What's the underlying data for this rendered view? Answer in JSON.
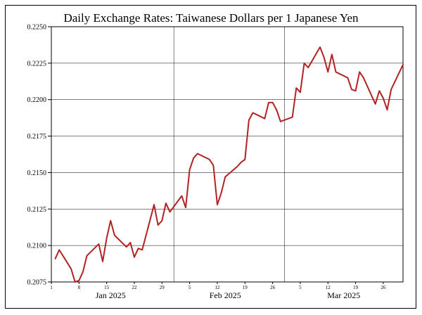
{
  "chart_data": {
    "type": "line",
    "title": "Daily Exchange Rates: Taiwanese Dollars per 1 Japanese Yen",
    "xlabel": "",
    "ylabel": "",
    "ylim": [
      0.2075,
      0.225
    ],
    "xlim": [
      "2025-01-01",
      "2025-03-31"
    ],
    "yticks": [
      "0.2075",
      "0.2100",
      "0.2125",
      "0.2150",
      "0.2175",
      "0.2200",
      "0.2225",
      "0.2250"
    ],
    "xticks_minor": [
      {
        "date": "2025-01-01",
        "label": "1"
      },
      {
        "date": "2025-01-08",
        "label": "8"
      },
      {
        "date": "2025-01-15",
        "label": "15"
      },
      {
        "date": "2025-01-22",
        "label": "22"
      },
      {
        "date": "2025-01-29",
        "label": "29"
      },
      {
        "date": "2025-02-05",
        "label": "5"
      },
      {
        "date": "2025-02-12",
        "label": "12"
      },
      {
        "date": "2025-02-19",
        "label": "19"
      },
      {
        "date": "2025-02-26",
        "label": "26"
      },
      {
        "date": "2025-03-05",
        "label": "5"
      },
      {
        "date": "2025-03-12",
        "label": "12"
      },
      {
        "date": "2025-03-19",
        "label": "19"
      },
      {
        "date": "2025-03-26",
        "label": "26"
      }
    ],
    "month_labels": [
      {
        "date": "2025-01-16",
        "label": "Jan 2025"
      },
      {
        "date": "2025-02-14",
        "label": "Feb 2025"
      },
      {
        "date": "2025-03-16",
        "label": "Mar 2025"
      }
    ],
    "month_gridlines": [
      "2025-02-01",
      "2025-03-01",
      "2025-03-31"
    ],
    "grid": true,
    "line_color": "#b22222",
    "series": [
      {
        "x": [
          "2025-01-02",
          "2025-01-03",
          "2025-01-06",
          "2025-01-07",
          "2025-01-08",
          "2025-01-09",
          "2025-01-10",
          "2025-01-13",
          "2025-01-14",
          "2025-01-15",
          "2025-01-16",
          "2025-01-17",
          "2025-01-20",
          "2025-01-21",
          "2025-01-22",
          "2025-01-23",
          "2025-01-24",
          "2025-01-27",
          "2025-01-28",
          "2025-01-29",
          "2025-01-30",
          "2025-01-31",
          "2025-02-03",
          "2025-02-04",
          "2025-02-05",
          "2025-02-06",
          "2025-02-07",
          "2025-02-10",
          "2025-02-11",
          "2025-02-12",
          "2025-02-13",
          "2025-02-14",
          "2025-02-17",
          "2025-02-18",
          "2025-02-19",
          "2025-02-20",
          "2025-02-21",
          "2025-02-24",
          "2025-02-25",
          "2025-02-26",
          "2025-02-27",
          "2025-02-28",
          "2025-03-03",
          "2025-03-04",
          "2025-03-05",
          "2025-03-06",
          "2025-03-07",
          "2025-03-10",
          "2025-03-11",
          "2025-03-12",
          "2025-03-13",
          "2025-03-14",
          "2025-03-17",
          "2025-03-18",
          "2025-03-19",
          "2025-03-20",
          "2025-03-21",
          "2025-03-24",
          "2025-03-25",
          "2025-03-26",
          "2025-03-27",
          "2025-03-28",
          "2025-03-31"
        ],
        "values": [
          0.2091,
          0.2097,
          0.2084,
          0.2075,
          0.2076,
          0.2082,
          0.2093,
          0.2101,
          0.2089,
          0.2105,
          0.2117,
          0.2107,
          0.2099,
          0.2102,
          0.2092,
          0.2098,
          0.2097,
          0.2128,
          0.2114,
          0.2117,
          0.2129,
          0.2123,
          0.2134,
          0.2126,
          0.2152,
          0.216,
          0.2163,
          0.2159,
          0.2155,
          0.2128,
          0.2136,
          0.2147,
          0.2154,
          0.2157,
          0.2159,
          0.2186,
          0.2191,
          0.2187,
          0.2198,
          0.2198,
          0.2193,
          0.2185,
          0.2188,
          0.2208,
          0.2205,
          0.2225,
          0.2222,
          0.2236,
          0.2229,
          0.2219,
          0.2231,
          0.2219,
          0.2215,
          0.2207,
          0.2206,
          0.2219,
          0.2215,
          0.2197,
          0.2206,
          0.2201,
          0.2193,
          0.2207,
          0.2224
        ]
      }
    ]
  }
}
